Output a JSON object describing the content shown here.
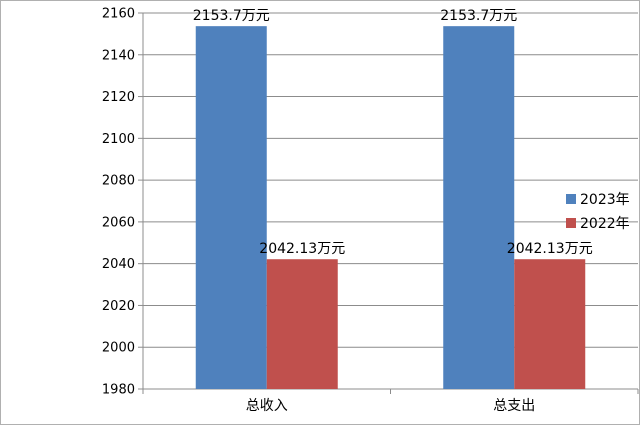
{
  "chart_data": {
    "type": "bar",
    "categories": [
      "总收入",
      "总支出"
    ],
    "series": [
      {
        "name": "2023年",
        "values": [
          2153.7,
          2153.7
        ],
        "labels": [
          "2153.7万元",
          "2153.7万元"
        ],
        "color": "#4f81bd"
      },
      {
        "name": "2022年",
        "values": [
          2042.13,
          2042.13
        ],
        "labels": [
          "2042.13万元",
          "2042.13万元"
        ],
        "color": "#c0504d"
      }
    ],
    "ylim": [
      1980,
      2160
    ],
    "yticks": [
      1980,
      2000,
      2020,
      2040,
      2060,
      2080,
      2100,
      2120,
      2140,
      2160
    ],
    "grid": true,
    "legend": "right"
  }
}
